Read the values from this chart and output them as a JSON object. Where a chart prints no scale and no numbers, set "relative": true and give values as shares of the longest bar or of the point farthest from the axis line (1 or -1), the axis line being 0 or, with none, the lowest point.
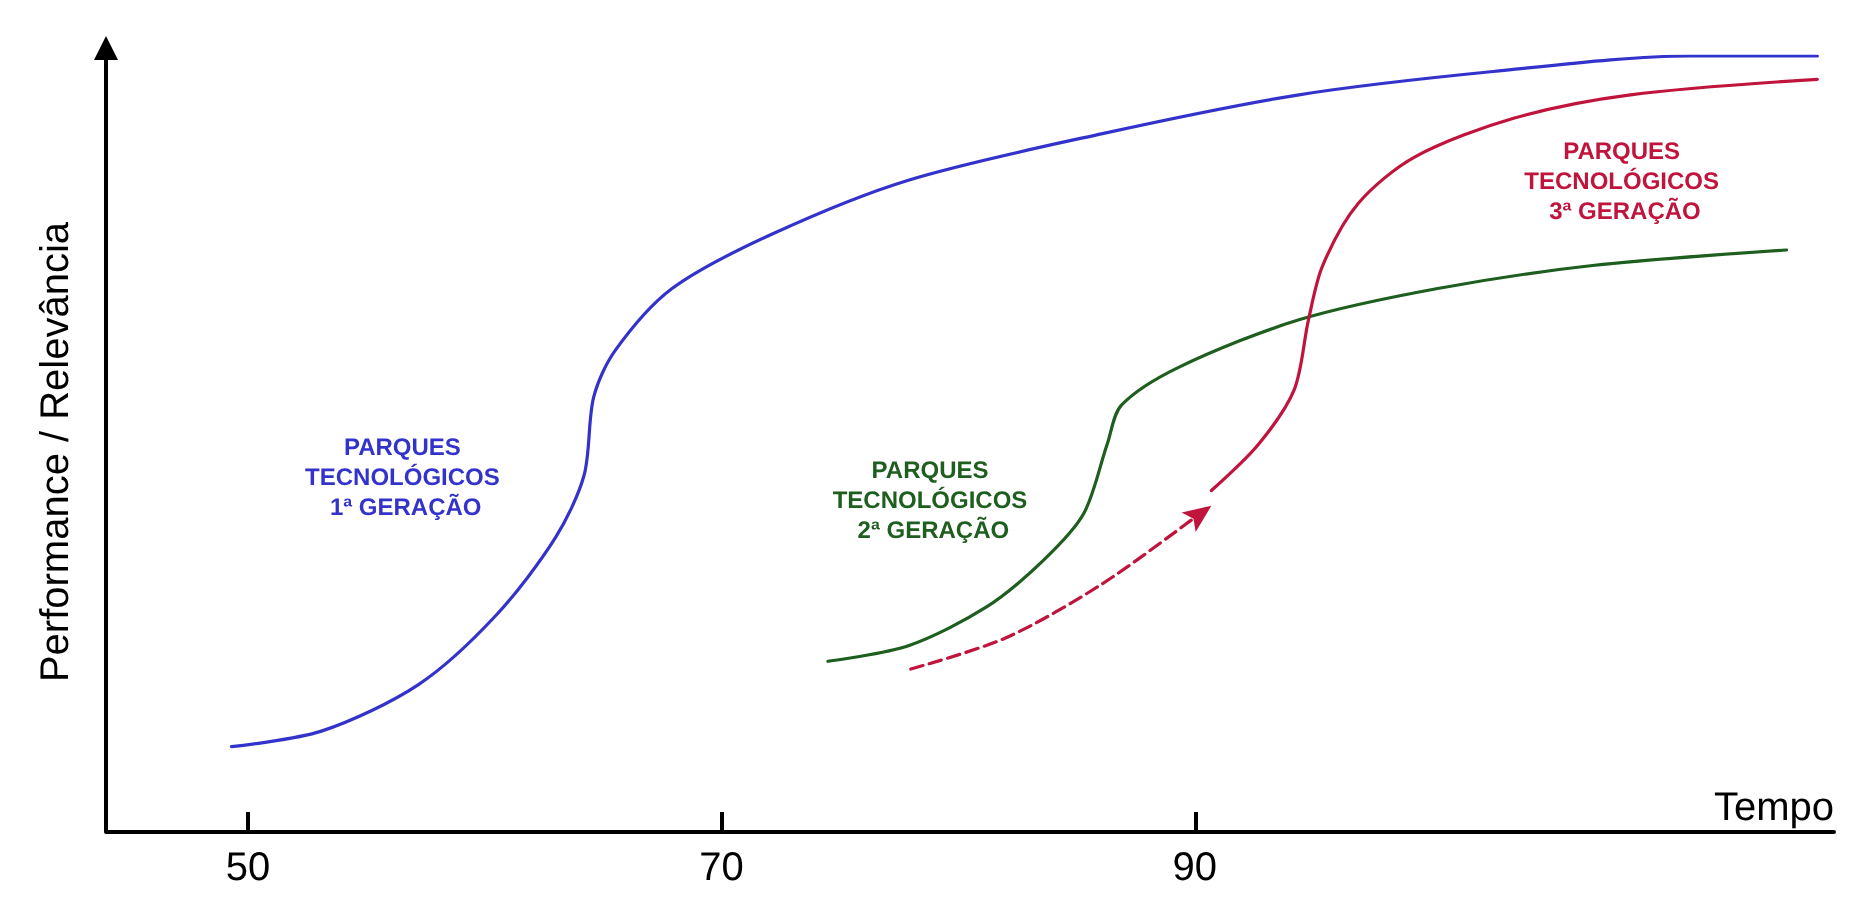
{
  "chart_data": {
    "type": "line",
    "relative": true,
    "xlabel": "Tempo",
    "ylabel": "Performance / Relevância",
    "xlim": [
      44,
      117
    ],
    "xticks": [
      50,
      70,
      90
    ],
    "grid": false,
    "legend": false,
    "marker": "none",
    "tick_labels": "x",
    "series": [
      {
        "name": "PARQUES TECNOLÓGICOS 1ª GERAÇÃO",
        "color": "#3333cc",
        "x": [
          49.3,
          53.1,
          57.2,
          60.5,
          63.0,
          64.2,
          64.6,
          65.5,
          67.9,
          72.1,
          77.9,
          86.1,
          94.4,
          102.6,
          110.9,
          116.3
        ],
        "values": [
          0.11,
          0.13,
          0.19,
          0.28,
          0.38,
          0.46,
          0.56,
          0.62,
          0.7,
          0.77,
          0.84,
          0.9,
          0.95,
          0.98,
          1.0,
          1.0
        ]
      },
      {
        "name": "PARQUES TECNOLÓGICOS 2ª GERAÇÃO",
        "color": "#1e5e1e",
        "x": [
          74.5,
          77.9,
          81.2,
          83.6,
          85.3,
          86.3,
          86.9,
          89.4,
          94.4,
          100.2,
          106.8,
          115.0
        ],
        "values": [
          0.22,
          0.24,
          0.29,
          0.35,
          0.41,
          0.5,
          0.55,
          0.6,
          0.66,
          0.7,
          0.73,
          0.75
        ]
      },
      {
        "color": "#c0143c",
        "line_style": "dashed",
        "x": [
          78.0,
          82.0,
          86.1,
          90.2
        ],
        "values": [
          0.21,
          0.25,
          0.32,
          0.41
        ]
      },
      {
        "name": "PARQUES TECNOLÓGICOS 3ª GERAÇÃO",
        "color": "#c0143c",
        "x": [
          90.7,
          92.7,
          94.2,
          94.8,
          95.4,
          96.9,
          99.3,
          103.5,
          108.4,
          116.3
        ],
        "values": [
          0.44,
          0.5,
          0.57,
          0.66,
          0.73,
          0.81,
          0.87,
          0.92,
          0.95,
          0.97
        ]
      }
    ]
  }
}
